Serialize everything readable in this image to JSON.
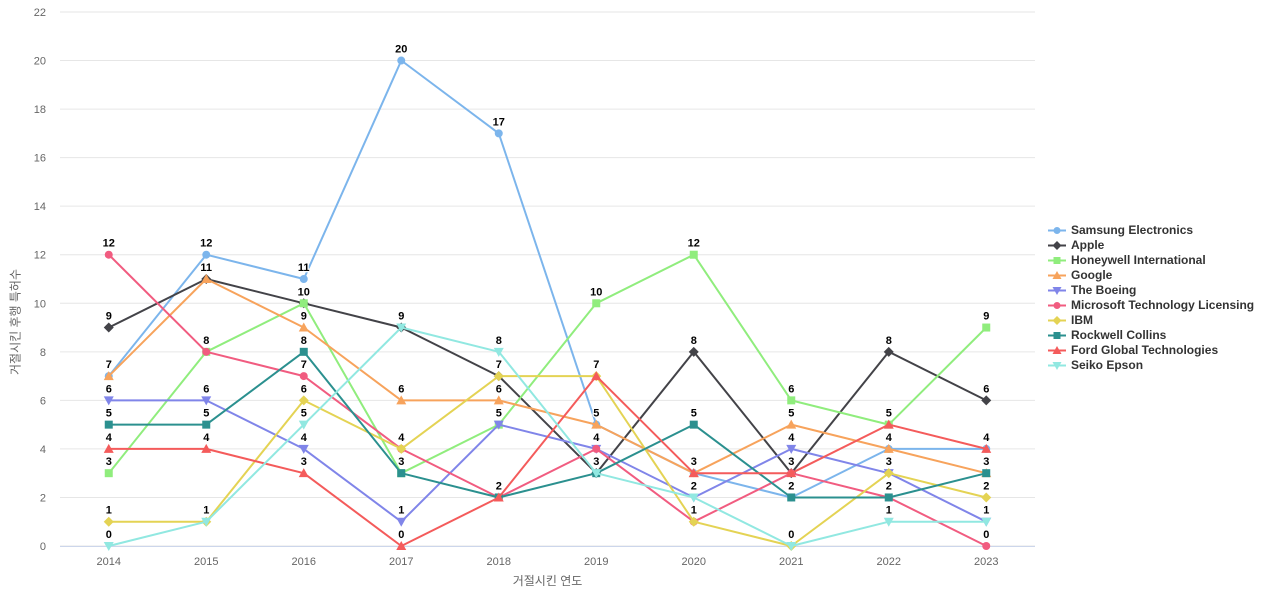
{
  "chart_data": {
    "type": "line",
    "title": "",
    "xlabel": "거절시킨 연도",
    "ylabel": "거절시킨 후행 특허수",
    "categories": [
      "2014",
      "2015",
      "2016",
      "2017",
      "2018",
      "2019",
      "2020",
      "2021",
      "2022",
      "2023"
    ],
    "y_ticks": [
      0,
      2,
      4,
      6,
      8,
      10,
      12,
      14,
      16,
      18,
      20,
      22
    ],
    "ylim": [
      0,
      22
    ],
    "grid": "horizontal",
    "grid_color": "#e6e6e6",
    "axis_line_color": "#ccd6eb",
    "tick_label_color": "#666666",
    "legend_position": "right",
    "data_labels": true,
    "series": [
      {
        "name": "Samsung Electronics",
        "color": "#7cb5ec",
        "marker": "circle",
        "values": [
          7,
          12,
          11,
          20,
          17,
          5,
          3,
          2,
          4,
          4
        ]
      },
      {
        "name": "Apple",
        "color": "#434348",
        "marker": "diamond",
        "values": [
          9,
          11,
          10,
          9,
          7,
          3,
          8,
          3,
          8,
          6
        ]
      },
      {
        "name": "Honeywell International",
        "color": "#90ed7d",
        "marker": "square",
        "values": [
          3,
          8,
          10,
          3,
          5,
          10,
          12,
          6,
          5,
          9
        ]
      },
      {
        "name": "Google",
        "color": "#f7a35c",
        "marker": "triangle",
        "values": [
          7,
          11,
          9,
          6,
          6,
          5,
          3,
          5,
          4,
          3
        ]
      },
      {
        "name": "The Boeing",
        "color": "#8085e9",
        "marker": "triangle-down",
        "values": [
          6,
          6,
          4,
          1,
          5,
          4,
          2,
          4,
          3,
          1
        ]
      },
      {
        "name": "Microsoft Technology Licensing",
        "color": "#f15c80",
        "marker": "circle",
        "values": [
          12,
          8,
          7,
          4,
          2,
          4,
          1,
          3,
          2,
          0
        ]
      },
      {
        "name": "IBM",
        "color": "#e4d354",
        "marker": "diamond",
        "values": [
          1,
          1,
          6,
          4,
          7,
          7,
          1,
          0,
          3,
          2
        ]
      },
      {
        "name": "Rockwell Collins",
        "color": "#2b908f",
        "marker": "square",
        "values": [
          5,
          5,
          8,
          3,
          2,
          3,
          5,
          2,
          2,
          3
        ]
      },
      {
        "name": "Ford Global Technologies",
        "color": "#f45b5b",
        "marker": "triangle",
        "values": [
          4,
          4,
          3,
          0,
          2,
          7,
          3,
          3,
          5,
          4
        ]
      },
      {
        "name": "Seiko Epson",
        "color": "#91e8e1",
        "marker": "triangle-down",
        "values": [
          0,
          1,
          5,
          9,
          8,
          3,
          2,
          0,
          1,
          1
        ]
      }
    ]
  }
}
